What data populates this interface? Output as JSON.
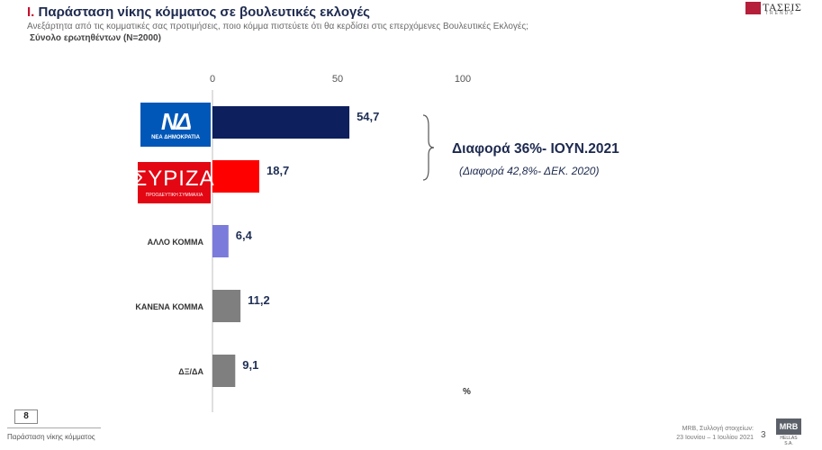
{
  "header": {
    "title_num": "I.",
    "title": "Παράσταση νίκης κόμματος σε βουλευτικές εκλογές",
    "subtitle": "Ανεξάρτητα από τις κομματικές σας προτιμήσεις, ποιο κόμμα πιστεύετε ότι θα κερδίσει στις επερχόμενες Βουλευτικές Εκλογές;",
    "base": "Σύνολο ερωτηθέντων (N=2000)"
  },
  "brand": {
    "name": "ΤΑΣΕΙΣ",
    "tagline": "TRENDS"
  },
  "logos": {
    "nd_mark": "ΝΔ",
    "nd_text": "ΝΕΑ ΔΗΜΟΚΡΑΤΙΑ",
    "syriza_mark": "ΣΥΡΙΖΑ",
    "syriza_text": "ΠΡΟΟΔΕΥΤΙΚΗ ΣΥΜΜΑΧΙΑ"
  },
  "chart_data": {
    "type": "bar",
    "orientation": "horizontal",
    "categories": [
      "ΝΕΑ ΔΗΜΟΚΡΑΤΙΑ",
      "ΣΥΡΙΖΑ",
      "ΑΛΛΟ ΚΟΜΜΑ",
      "ΚΑΝΕΝΑ ΚΟΜΜΑ",
      "ΔΞ/ΔΑ"
    ],
    "category_labels_shown": [
      "",
      "",
      "ΑΛΛΟ ΚΟΜΜΑ",
      "ΚΑΝΕΝΑ ΚΟΜΜΑ",
      "ΔΞ/ΔΑ"
    ],
    "values": [
      54.7,
      18.7,
      6.4,
      11.2,
      9.1
    ],
    "value_labels": [
      "54,7",
      "18,7",
      "6,4",
      "11,2",
      "9,1"
    ],
    "colors": [
      "#0d1f5c",
      "#ff0000",
      "#7b7bdb",
      "#7f7f7f",
      "#7f7f7f"
    ],
    "xlim": [
      0,
      100
    ],
    "xticks": [
      0,
      50,
      100
    ],
    "unit": "%",
    "grid": false,
    "legend": "none",
    "annotations": [
      {
        "text": "Διαφορά 36%- ΙΟΥΝ.2021",
        "style": "bold"
      },
      {
        "text": "(Διαφορά 42,8%- ΔΕΚ. 2020)",
        "style": "italic"
      }
    ]
  },
  "footer": {
    "page_box": "8",
    "left": "Παράσταση νίκης κόμματος",
    "right_line1": "MRB, Συλλογή στοιχείων:",
    "right_line2": "23 Ιουνίου – 1 Ιουλίου 2021",
    "page_number": "3",
    "mrb_name": "MRB",
    "mrb_sub": "HELLAS S.A."
  }
}
